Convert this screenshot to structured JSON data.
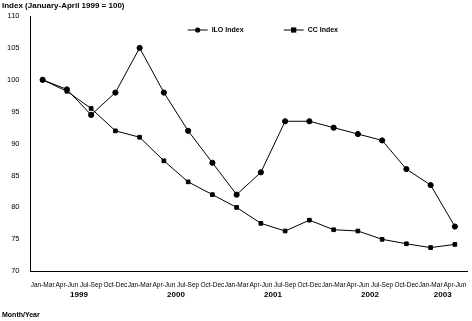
{
  "chart_data": {
    "type": "line",
    "y_label": "Index (January-April 1999 = 100)",
    "x_label": "Month/Year",
    "categories": [
      "Jan-Mar",
      "Apr-Jun",
      "Jul-Sep",
      "Oct-Dec",
      "Jan-Mar",
      "Apr-Jun",
      "Jul-Sep",
      "Oct-Dec",
      "Jan-Mar",
      "Apr-Jun",
      "Jul-Sep",
      "Oct-Dec",
      "Jan-Mar",
      "Apr-Jun",
      "Jul-Sep",
      "Oct-Dec",
      "Jan-Mar",
      "Apr-Jun"
    ],
    "category_groups": [
      {
        "label": "1999",
        "categories": [
          "Jan-Mar",
          "Apr-Jun",
          "Jul-Sep",
          "Oct-Dec"
        ]
      },
      {
        "label": "2000",
        "categories": [
          "Jan-Mar",
          "Apr-Jun",
          "Jul-Sep",
          "Oct-Dec"
        ]
      },
      {
        "label": "2001",
        "categories": [
          "Jan-Mar",
          "Apr-Jun",
          "Jul-Sep",
          "Oct-Dec"
        ]
      },
      {
        "label": "2002",
        "categories": [
          "Jan-Mar",
          "Apr-Jun",
          "Jul-Sep",
          "Oct-Dec"
        ]
      },
      {
        "label": "2003",
        "categories": [
          "Jan-Mar",
          "Apr-Jun"
        ]
      }
    ],
    "series": [
      {
        "name": "ILO Index",
        "color": "#000000",
        "marker": "circle",
        "line_style": "solid",
        "values": [
          100,
          98.5,
          94.5,
          98,
          105,
          98,
          92,
          87,
          82,
          85.5,
          93.5,
          93.5,
          92.5,
          91.5,
          90.5,
          86,
          83.5,
          77
        ]
      },
      {
        "name": "CC Index",
        "color": "#000000",
        "marker": "square",
        "line_style": "solid",
        "values": [
          100,
          98.2,
          95.5,
          92,
          91,
          87.3,
          84,
          82,
          80,
          77.5,
          76.3,
          78,
          76.5,
          76.3,
          75,
          74.3,
          73.7,
          74.2
        ]
      }
    ],
    "ylim": [
      70,
      110
    ],
    "yticks": [
      70,
      75,
      80,
      85,
      90,
      95,
      100,
      105,
      110
    ],
    "grid": false,
    "legend": "top"
  }
}
